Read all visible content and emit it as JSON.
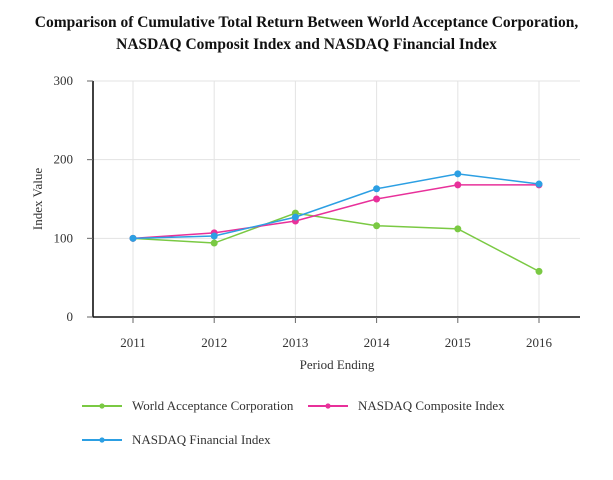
{
  "chart_data": {
    "type": "line",
    "title_lines": [
      "Comparison of Cumulative Total Return Between World Acceptance Corporation,",
      "NASDAQ Composit Index and NASDAQ Financial Index"
    ],
    "xlabel": "Period Ending",
    "ylabel": "Index Value",
    "categories": [
      "2011",
      "2012",
      "2013",
      "2014",
      "2015",
      "2016"
    ],
    "ylim": [
      0,
      300
    ],
    "yticks": [
      0,
      100,
      200,
      300
    ],
    "grid": true,
    "legend_position": "bottom",
    "series": [
      {
        "name": "World Acceptance Corporation",
        "color": "#7ac943",
        "values": [
          100,
          94,
          132,
          116,
          112,
          58
        ]
      },
      {
        "name": "NASDAQ Composite Index",
        "color": "#e8309a",
        "values": [
          100,
          107,
          122,
          150,
          168,
          168
        ]
      },
      {
        "name": "NASDAQ Financial Index",
        "color": "#2c9fe3",
        "values": [
          100,
          103,
          127,
          163,
          182,
          169
        ]
      }
    ]
  }
}
